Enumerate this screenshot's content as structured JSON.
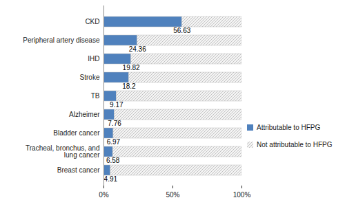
{
  "chart_data": {
    "type": "bar",
    "orientation": "horizontal",
    "stacked": true,
    "legend": "right",
    "categories": [
      "CKD",
      "Peripheral artery disease",
      "IHD",
      "Stroke",
      "TB",
      "Alzheimer",
      "Bladder cancer",
      "Tracheal, bronchus, and lung cancer",
      "Breast cancer"
    ],
    "series": [
      {
        "name": "Attributable to HFPG",
        "color": "#4f81bd",
        "data_labels": true,
        "values": [
          56.63,
          24.36,
          19.82,
          18.2,
          9.17,
          7.76,
          6.97,
          6.58,
          4.91
        ]
      },
      {
        "name": "Not attributable to HFPG",
        "color": "#bfbfbf",
        "line_style": "hatched",
        "values": [
          43.37,
          75.64,
          80.18,
          81.8,
          90.83,
          92.24,
          93.03,
          93.42,
          95.09
        ]
      }
    ],
    "xlim": [
      0,
      100
    ],
    "xticks": [
      {
        "value": 0,
        "label": "0%"
      },
      {
        "value": 50,
        "label": "50%"
      },
      {
        "value": 100,
        "label": "100%"
      }
    ],
    "grid": false
  }
}
